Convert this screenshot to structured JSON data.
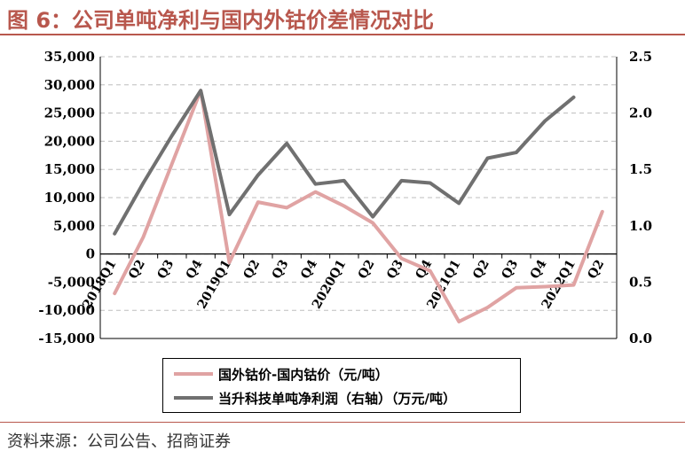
{
  "title": "图 6：公司单吨净利与国内外钴价差情况对比",
  "source": "资料来源：公司公告、招商证券",
  "colors": {
    "title": "#b8574d",
    "series_price_diff": "#e0a3a3",
    "series_profit": "#707070"
  },
  "chart_data": {
    "type": "line",
    "categories": [
      "2018Q1",
      "Q2",
      "Q3",
      "Q4",
      "2019Q1",
      "Q2",
      "Q3",
      "Q4",
      "2020Q1",
      "Q2",
      "Q3",
      "Q4",
      "2021Q1",
      "Q2",
      "Q3",
      "Q4",
      "2022Q1",
      "Q2"
    ],
    "left_axis": {
      "ylim": [
        -15000,
        35000
      ],
      "ticks": [
        35000,
        30000,
        25000,
        20000,
        15000,
        10000,
        5000,
        0,
        -5000,
        -10000,
        -15000
      ],
      "tick_labels": [
        "35,000",
        "30,000",
        "25,000",
        "20,000",
        "15,000",
        "10,000",
        "5,000",
        "0",
        "-5,000",
        "-10,000",
        "-15,000"
      ]
    },
    "right_axis": {
      "ylim": [
        0.0,
        2.5
      ],
      "ticks": [
        2.5,
        2.0,
        1.5,
        1.0,
        0.5,
        0.0
      ],
      "tick_labels": [
        "2.5",
        "2.0",
        "1.5",
        "1.0",
        "0.5",
        "0.0"
      ]
    },
    "grid": true,
    "legend_placement": "bottom-center",
    "series": [
      {
        "name": "国外钴价-国内钴价（元/吨）",
        "axis": "left",
        "color": "#e0a3a3",
        "values": [
          -7000,
          3000,
          16000,
          29000,
          -1500,
          9200,
          8200,
          11000,
          8500,
          5500,
          -800,
          -3000,
          -12000,
          -9500,
          -6000,
          -5800,
          -5500,
          7500
        ]
      },
      {
        "name": "当升科技单吨净利润（右轴）（万元/吨）",
        "axis": "right",
        "color": "#707070",
        "values": [
          null,
          null,
          null,
          null,
          1.1,
          1.45,
          1.73,
          1.37,
          1.4,
          1.08,
          1.4,
          1.38,
          1.2,
          1.6,
          1.65,
          1.93,
          2.14,
          null
        ],
        "values_early": [
          0.93,
          1.38,
          1.8,
          2.2
        ]
      }
    ]
  }
}
